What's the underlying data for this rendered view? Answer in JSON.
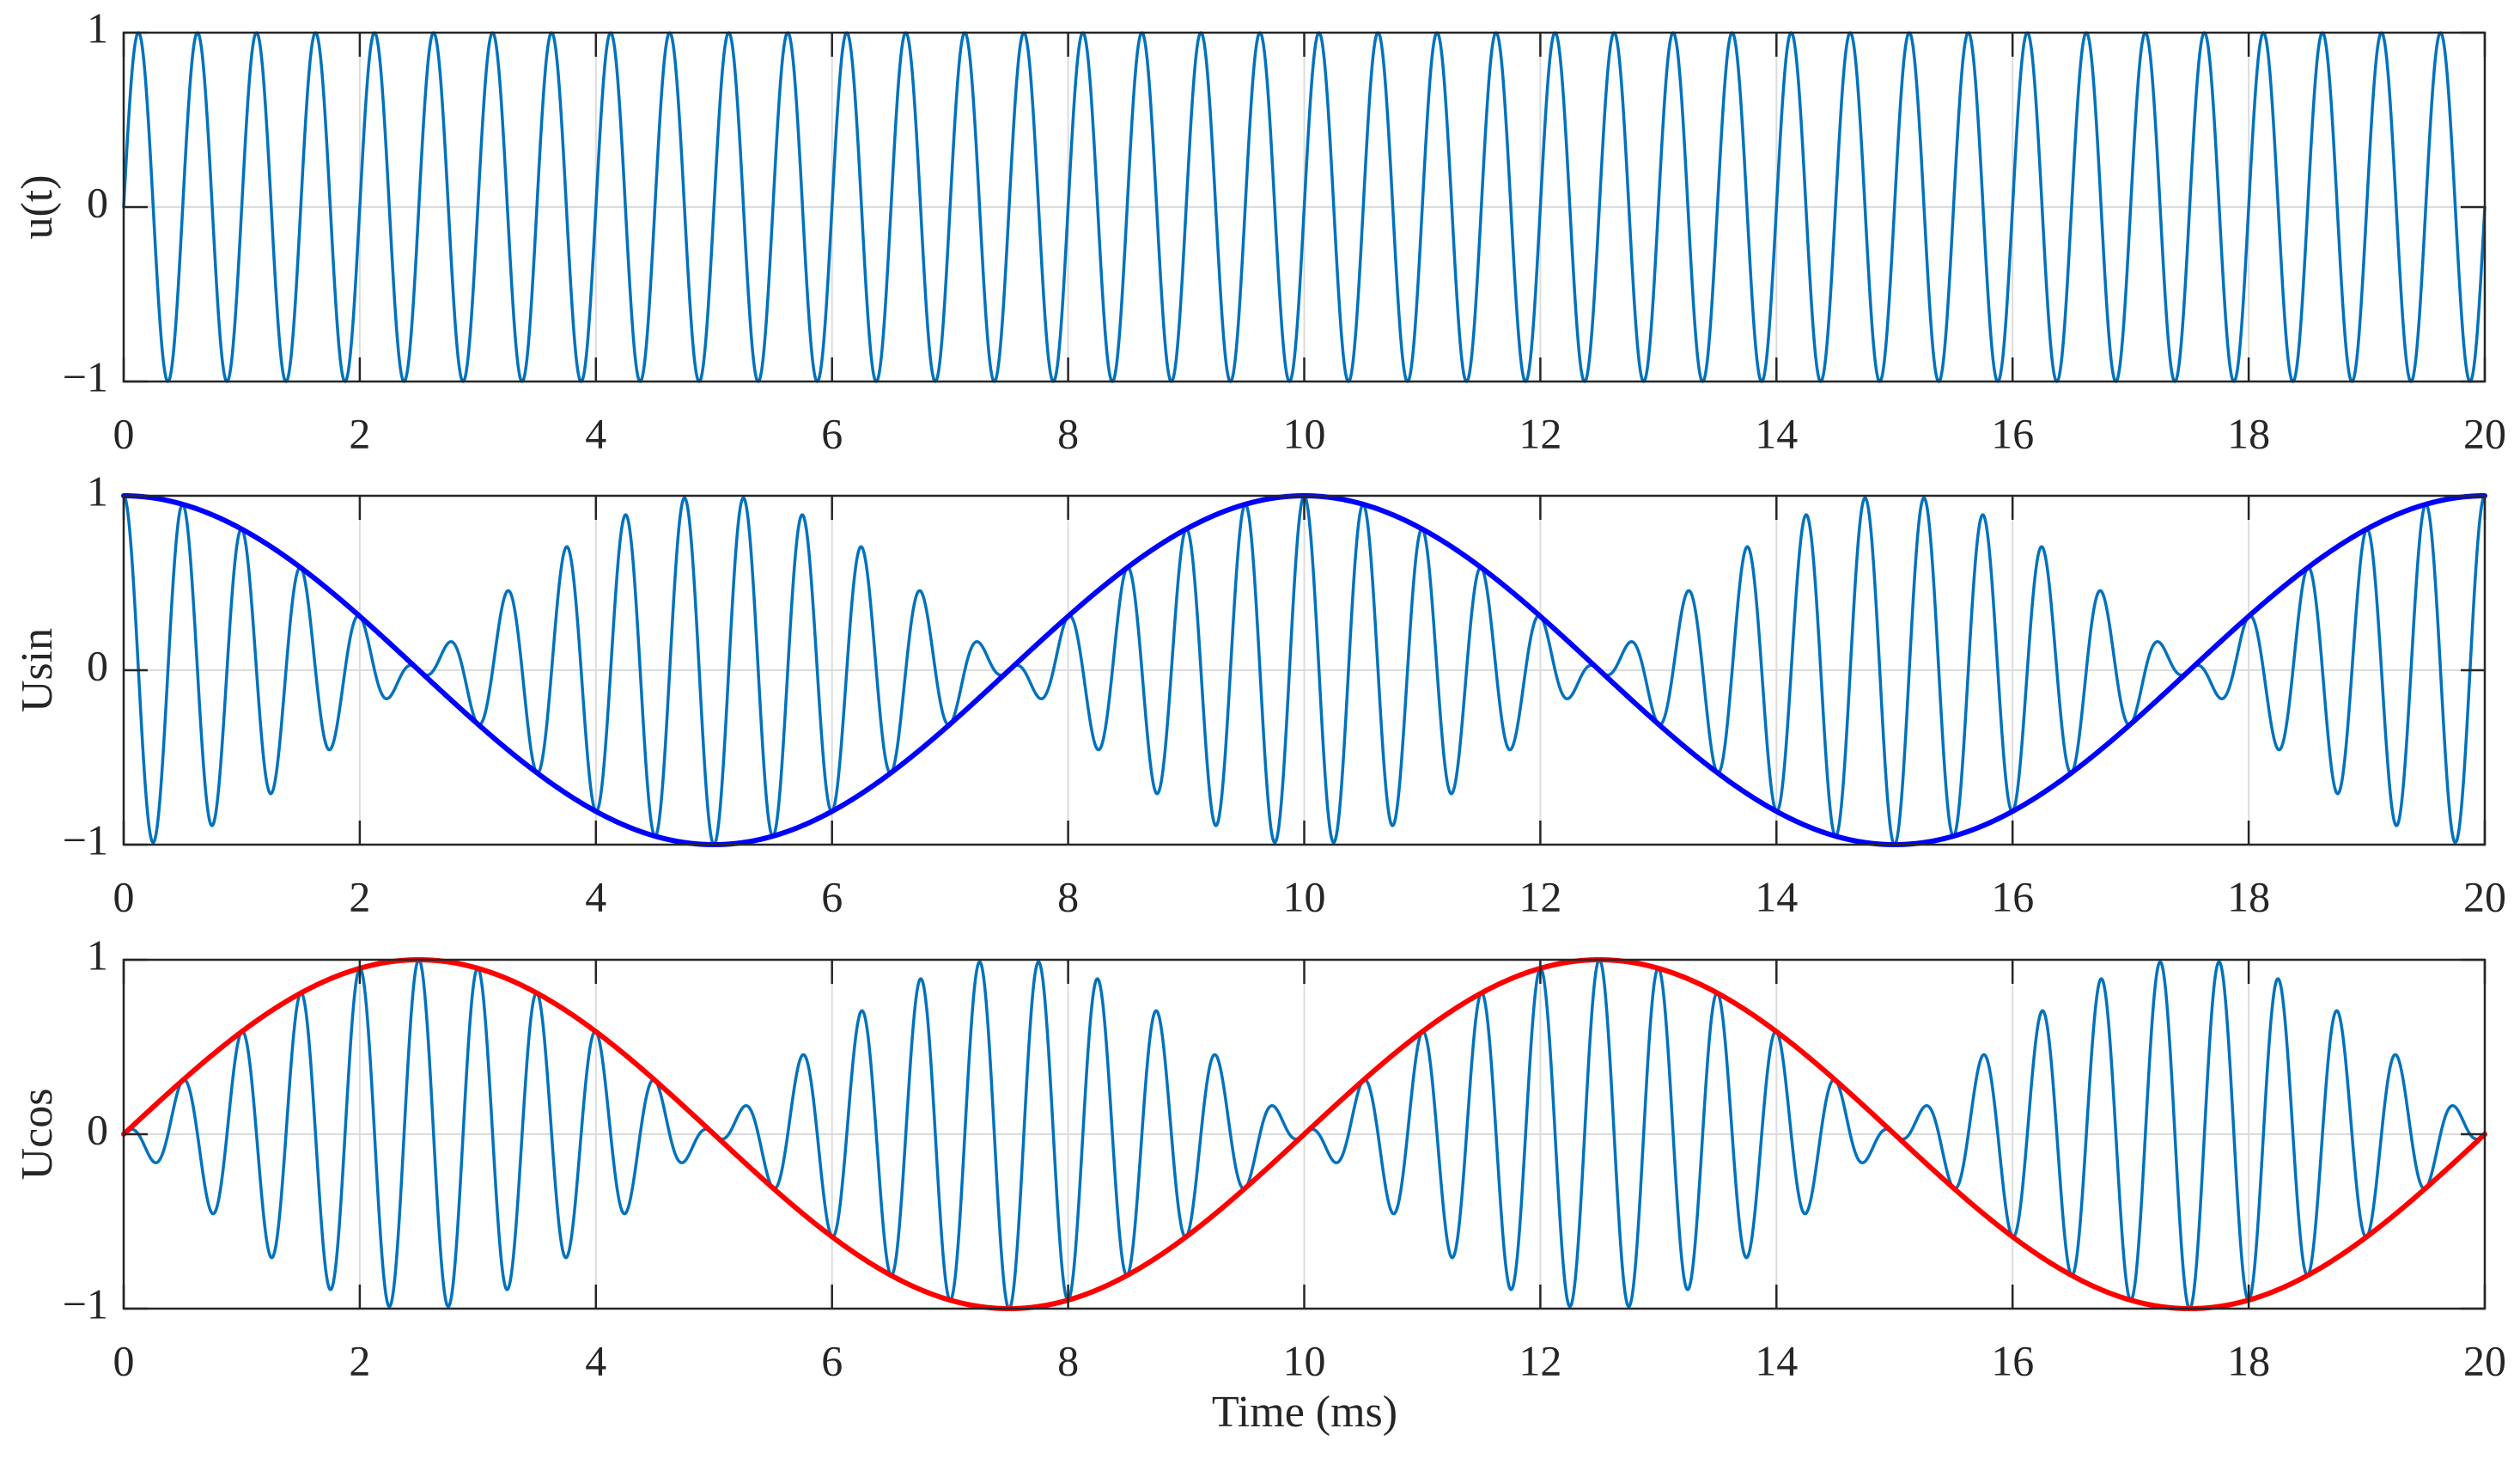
{
  "figure": {
    "xlabel": "Time (ms)",
    "colors": {
      "signal": "#0072bd",
      "sin_envelope": "#0000ff",
      "cos_envelope": "#ff0000",
      "axis": "#262626",
      "grid": "#dcdcdc",
      "background": "#ffffff"
    }
  },
  "chart_data": [
    {
      "type": "line",
      "title": "",
      "xlabel": "",
      "ylabel": "u(t)",
      "xlim": [
        0,
        20
      ],
      "ylim": [
        -1,
        1
      ],
      "xticks": [
        0,
        2,
        4,
        6,
        8,
        10,
        12,
        14,
        16,
        18,
        20
      ],
      "xtick_labels": [
        "0",
        "2",
        "4",
        "6",
        "8",
        "10",
        "12",
        "14",
        "16",
        "18",
        "20"
      ],
      "yticks": [
        -1,
        0,
        1
      ],
      "ytick_labels": [
        "−1",
        "0",
        "1"
      ],
      "grid": true,
      "x_units": "ms",
      "series": [
        {
          "name": "u(t)",
          "color": "#0072bd",
          "line_width": 3.5,
          "model": "sin(2*pi*fc*t)",
          "fc_hz": 2000,
          "description": "carrier sine, 40 cycles over 20 ms, amplitude 1"
        }
      ]
    },
    {
      "type": "line",
      "title": "",
      "xlabel": "",
      "ylabel": "Usin",
      "xlim": [
        0,
        20
      ],
      "ylim": [
        -1,
        1
      ],
      "xticks": [
        0,
        2,
        4,
        6,
        8,
        10,
        12,
        14,
        16,
        18,
        20
      ],
      "xtick_labels": [
        "0",
        "2",
        "4",
        "6",
        "8",
        "10",
        "12",
        "14",
        "16",
        "18",
        "20"
      ],
      "yticks": [
        -1,
        0,
        1
      ],
      "ytick_labels": [
        "−1",
        "0",
        "1"
      ],
      "grid": true,
      "x_units": "ms",
      "series": [
        {
          "name": "Usin signal",
          "color": "#0072bd",
          "line_width": 3.5,
          "model": "cos(2*pi*fc*t)*cos(2*pi*fm*t)",
          "fc_hz": 2000,
          "fm_hz": 100,
          "description": "amplitude-modulated carrier, max amplitude at t=0,5,10,15,20 ms, near-null at 2.5,7.5,12.5,17.5 ms"
        },
        {
          "name": "Usin envelope",
          "color": "#0000ff",
          "line_width": 6,
          "model": "cos(2*pi*fm*t)",
          "fm_hz": 100,
          "key_points": [
            [
              0,
              1
            ],
            [
              2.5,
              0
            ],
            [
              5,
              -1
            ],
            [
              7.5,
              0
            ],
            [
              10,
              1
            ],
            [
              12.5,
              0
            ],
            [
              15,
              -1
            ],
            [
              17.5,
              0
            ],
            [
              20,
              1
            ]
          ]
        }
      ]
    },
    {
      "type": "line",
      "title": "",
      "xlabel": "Time (ms)",
      "ylabel": "Ucos",
      "xlim": [
        0,
        20
      ],
      "ylim": [
        -1,
        1
      ],
      "xticks": [
        0,
        2,
        4,
        6,
        8,
        10,
        12,
        14,
        16,
        18,
        20
      ],
      "xtick_labels": [
        "0",
        "2",
        "4",
        "6",
        "8",
        "10",
        "12",
        "14",
        "16",
        "18",
        "20"
      ],
      "yticks": [
        -1,
        0,
        1
      ],
      "ytick_labels": [
        "−1",
        "0",
        "1"
      ],
      "grid": true,
      "x_units": "ms",
      "series": [
        {
          "name": "Ucos signal",
          "color": "#0072bd",
          "line_width": 3.5,
          "model": "cos(2*pi*fc*t)*sin(2*pi*fm*t)",
          "fc_hz": 2000,
          "fm_hz": 100,
          "description": "amplitude-modulated carrier, max amplitude at t=2.5,7.5,12.5,17.5 ms, near-null at 0,5,10,15,20 ms"
        },
        {
          "name": "Ucos envelope",
          "color": "#ff0000",
          "line_width": 6,
          "model": "sin(2*pi*fm*t)",
          "fm_hz": 100,
          "key_points": [
            [
              0,
              0
            ],
            [
              2.5,
              1
            ],
            [
              5,
              0
            ],
            [
              7.5,
              -1
            ],
            [
              10,
              0
            ],
            [
              12.5,
              1
            ],
            [
              15,
              0
            ],
            [
              17.5,
              -1
            ],
            [
              20,
              0
            ]
          ]
        }
      ]
    }
  ]
}
